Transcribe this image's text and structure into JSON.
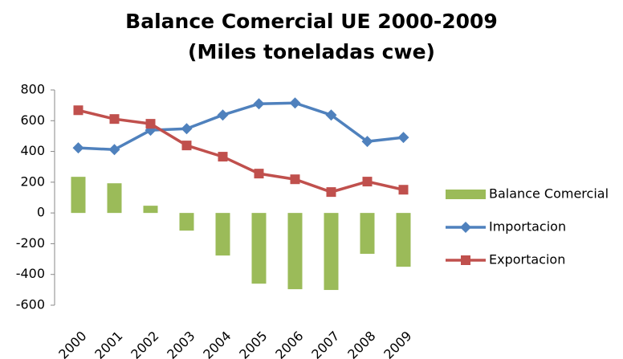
{
  "chart_data": {
    "type": "bar",
    "title": "Balance Comercial UE 2000-2009",
    "subtitle": "(Miles toneladas cwe)",
    "categories": [
      "2000",
      "2001",
      "2002",
      "2003",
      "2004",
      "2005",
      "2006",
      "2007",
      "2008",
      "2009"
    ],
    "series": [
      {
        "name": "Balance Comercial",
        "type": "bar",
        "color": "#9bbb59",
        "values": [
          235,
          193,
          47,
          -115,
          -277,
          -460,
          -496,
          -501,
          -266,
          -350
        ]
      },
      {
        "name": "Importacion",
        "type": "line",
        "marker": "diamond",
        "color": "#4f81bd",
        "values": [
          423,
          412,
          538,
          548,
          637,
          710,
          715,
          637,
          465,
          491
        ]
      },
      {
        "name": "Exportacion",
        "type": "line",
        "marker": "square",
        "color": "#c0504d",
        "values": [
          668,
          611,
          580,
          439,
          366,
          256,
          219,
          136,
          204,
          151
        ]
      }
    ],
    "ylim": [
      -600,
      800
    ],
    "yticks": [
      -600,
      -400,
      -200,
      0,
      200,
      400,
      600,
      800
    ],
    "grid": false,
    "legend": "right"
  }
}
